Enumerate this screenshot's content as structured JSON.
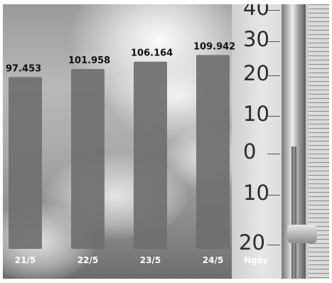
{
  "chart_data": {
    "type": "bar",
    "categories": [
      "21/5",
      "22/5",
      "23/5",
      "24/5"
    ],
    "values": [
      97.453,
      101.958,
      106.164,
      109.942
    ],
    "value_labels": [
      "97.453",
      "101.958",
      "106.164",
      "109.942"
    ],
    "title": "",
    "xlabel": "Ngày",
    "ylabel": "",
    "ylim": [
      0,
      125
    ],
    "grid": false,
    "legend": "none",
    "bar_color": "#6f6f6f"
  },
  "background": {
    "thermometer_scale": [
      "40",
      "30",
      "20",
      "10",
      "0",
      "10",
      "20"
    ]
  }
}
